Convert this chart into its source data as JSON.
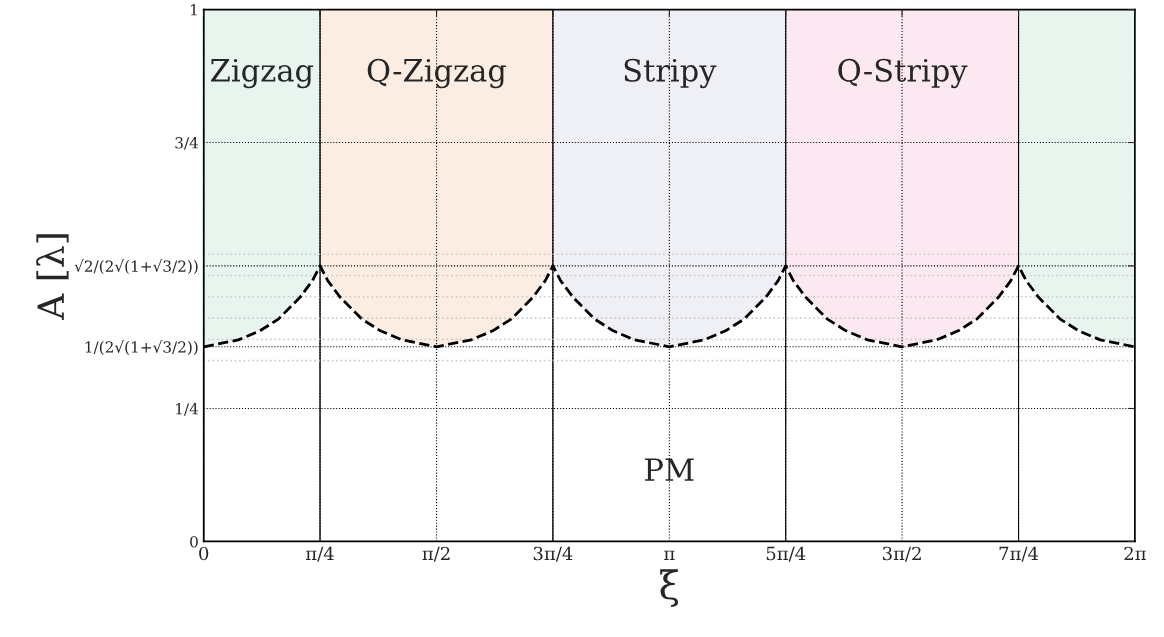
{
  "chart_data": {
    "type": "line",
    "xlabel": "ξ",
    "ylabel": "A [λ]",
    "x": [
      0,
      0.234,
      0.379,
      0.504,
      0.65,
      0.733,
      0.785,
      0.838,
      0.921,
      1.067,
      1.192,
      1.337,
      1.571,
      1.805,
      1.95,
      2.075,
      2.221,
      2.304,
      2.356,
      2.409,
      2.492,
      2.638,
      2.763,
      2.908,
      3.142,
      3.376,
      3.521,
      3.646,
      3.792,
      3.875,
      3.927,
      3.979,
      4.062,
      4.208,
      4.333,
      4.478,
      4.712,
      4.946,
      5.091,
      5.216,
      5.362,
      5.445,
      5.498,
      5.55,
      5.633,
      5.779,
      5.904,
      6.049,
      6.283
    ],
    "series": [
      {
        "color": "#000000",
        "values": [
          0.366,
          0.379,
          0.396,
          0.418,
          0.459,
          0.49,
          0.518,
          0.49,
          0.459,
          0.418,
          0.396,
          0.379,
          0.366,
          0.379,
          0.396,
          0.418,
          0.459,
          0.49,
          0.518,
          0.49,
          0.459,
          0.418,
          0.396,
          0.379,
          0.366,
          0.379,
          0.396,
          0.418,
          0.459,
          0.49,
          0.518,
          0.49,
          0.459,
          0.418,
          0.396,
          0.379,
          0.366,
          0.379,
          0.396,
          0.418,
          0.459,
          0.49,
          0.518,
          0.49,
          0.459,
          0.418,
          0.396,
          0.379,
          0.366
        ]
      }
    ],
    "line_style": "dashed",
    "marker": "none",
    "xlim": [
      0,
      6.283
    ],
    "ylim": [
      0,
      1
    ],
    "xticks": [
      0,
      {
        "value": 0.785,
        "label": "π/4"
      },
      {
        "value": 1.571,
        "label": "π/2"
      },
      {
        "value": 2.356,
        "label": "3π/4"
      },
      {
        "value": 3.142,
        "label": "π"
      },
      {
        "value": 3.927,
        "label": "5π/4"
      },
      {
        "value": 4.712,
        "label": "3π/2"
      },
      {
        "value": 5.498,
        "label": "7π/4"
      },
      {
        "value": 6.283,
        "label": "2π"
      }
    ],
    "yticks": [
      0,
      {
        "value": 0.25,
        "label": "1/4"
      },
      {
        "value": 0.366,
        "label": "1/(2√(1+√3/2))"
      },
      {
        "value": 0.518,
        "label": "√2/(2√(1+√3/2))"
      },
      {
        "value": 0.75,
        "label": "3/4"
      },
      1
    ],
    "grid": true,
    "bands": [
      {
        "axis": "x",
        "from": 0,
        "to": 0.785,
        "label": "Zigzag",
        "color": "#e8f5ef"
      },
      {
        "axis": "x",
        "from": 0.785,
        "to": 2.356,
        "label": "Q-Zigzag",
        "color": "#fcede2"
      },
      {
        "axis": "x",
        "from": 2.356,
        "to": 3.927,
        "label": "Stripy",
        "color": "#efeff6"
      },
      {
        "axis": "x",
        "from": 3.927,
        "to": 5.498,
        "label": "Q-Stripy",
        "color": "#fbe8f1"
      },
      {
        "axis": "x",
        "from": 5.498,
        "to": 6.283,
        "color": "#e8f5ef"
      }
    ],
    "ref_lines": [
      {
        "axis": "y",
        "value": 0.34,
        "color": "#cccccc",
        "line_style": "dotted"
      },
      {
        "axis": "y",
        "value": 0.38,
        "color": "#cccccc",
        "line_style": "dotted"
      },
      {
        "axis": "y",
        "value": 0.42,
        "color": "#cccccc",
        "line_style": "dotted"
      },
      {
        "axis": "y",
        "value": 0.46,
        "color": "#cccccc",
        "line_style": "dotted"
      },
      {
        "axis": "y",
        "value": 0.5,
        "color": "#cccccc",
        "line_style": "dotted"
      },
      {
        "axis": "y",
        "value": 0.54,
        "color": "#cccccc",
        "line_style": "dotted"
      }
    ],
    "annotations": [
      "PM"
    ]
  }
}
